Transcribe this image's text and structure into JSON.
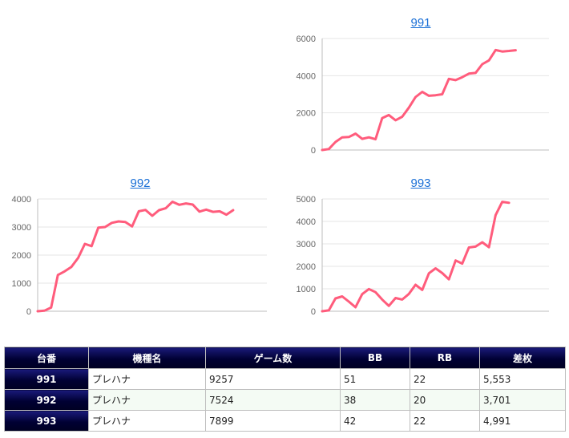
{
  "colors": {
    "series": "#ff5c7c",
    "link": "#1a6fd6",
    "header_bg": "#000033"
  },
  "chart_data": [
    {
      "type": "line",
      "title": "991",
      "ylim": [
        0,
        6000
      ],
      "yticks": [
        "0",
        "2000",
        "4000",
        "6000"
      ],
      "grid": true,
      "values": [
        0,
        50,
        430,
        680,
        700,
        880,
        600,
        680,
        580,
        1720,
        1880,
        1600,
        1790,
        2280,
        2850,
        3130,
        2920,
        2950,
        3000,
        3830,
        3760,
        3920,
        4110,
        4150,
        4620,
        4820,
        5380,
        5300,
        5330,
        5370
      ]
    },
    {
      "type": "line",
      "title": "992",
      "ylim": [
        0,
        4000
      ],
      "yticks": [
        "0",
        "1000",
        "2000",
        "3000",
        "4000"
      ],
      "grid": true,
      "values": [
        0,
        20,
        130,
        1290,
        1420,
        1580,
        1900,
        2400,
        2320,
        2980,
        3000,
        3150,
        3200,
        3180,
        3020,
        3560,
        3610,
        3400,
        3600,
        3670,
        3900,
        3790,
        3840,
        3800,
        3550,
        3620,
        3540,
        3560,
        3440,
        3601
      ]
    },
    {
      "type": "line",
      "title": "993",
      "ylim": [
        0,
        5000
      ],
      "yticks": [
        "0",
        "1000",
        "2000",
        "3000",
        "4000",
        "5000"
      ],
      "grid": true,
      "values": [
        0,
        40,
        570,
        660,
        430,
        180,
        760,
        990,
        850,
        520,
        240,
        590,
        520,
        770,
        1180,
        950,
        1690,
        1910,
        1700,
        1420,
        2260,
        2120,
        2840,
        2880,
        3070,
        2850,
        4280,
        4870,
        4830
      ]
    }
  ],
  "table": {
    "headers": [
      "台番",
      "機種名",
      "ゲーム数",
      "BB",
      "RB",
      "差枚"
    ],
    "rows": [
      [
        "991",
        "プレハナ",
        "9257",
        "51",
        "22",
        "5,553"
      ],
      [
        "992",
        "プレハナ",
        "7524",
        "38",
        "20",
        "3,701"
      ],
      [
        "993",
        "プレハナ",
        "7899",
        "42",
        "22",
        "4,991"
      ]
    ]
  }
}
